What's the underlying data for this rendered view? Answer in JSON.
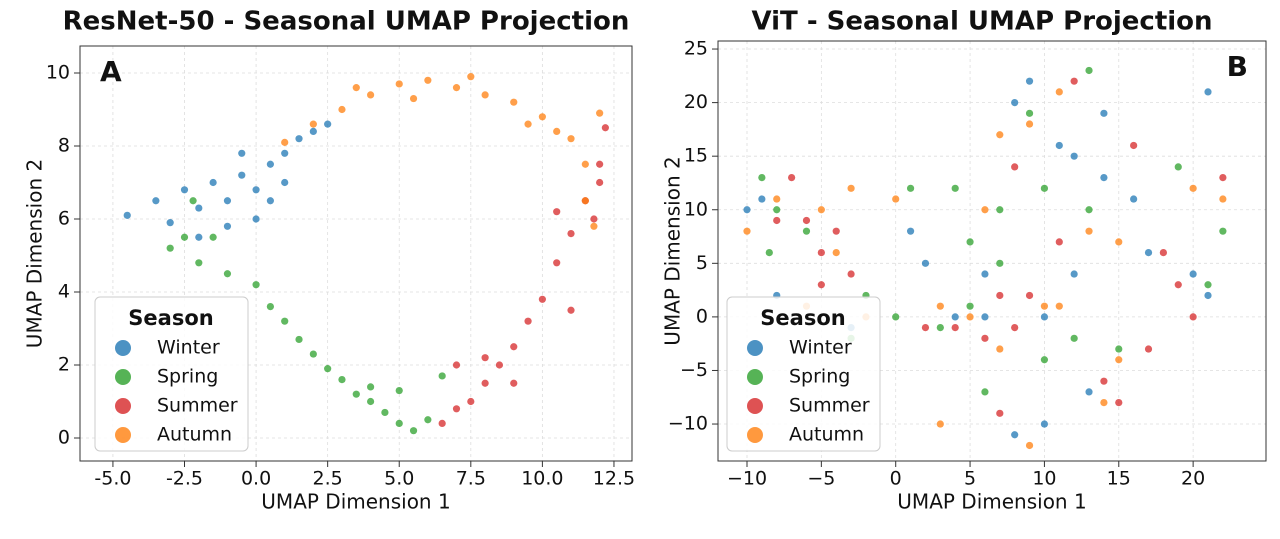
{
  "chart_data": [
    {
      "type": "scatter",
      "title": "ResNet-50 - Seasonal UMAP Projection",
      "panel_label": "A",
      "x_label": "UMAP Dimension 1",
      "y_label": "UMAP Dimension 2",
      "xlim": [
        -6.15,
        13.13
      ],
      "ylim": [
        -0.63,
        10.74
      ],
      "xticks": [
        {
          "value": -5,
          "label": "-5.0"
        },
        {
          "value": -2.5,
          "label": "-2.5"
        },
        {
          "value": 0,
          "label": "0.0"
        },
        {
          "value": 2.5,
          "label": "2.5"
        },
        {
          "value": 5,
          "label": "5.0"
        },
        {
          "value": 7.5,
          "label": "7.5"
        },
        {
          "value": 10,
          "label": "10.0"
        },
        {
          "value": 12.5,
          "label": "12.5"
        }
      ],
      "yticks": [
        0,
        2,
        4,
        6,
        8,
        10
      ],
      "grid": true,
      "legend": "lower left",
      "legend_title": "Season",
      "series": [
        {
          "name": "Winter",
          "color": "#1f77b4",
          "x": [
            -4.5,
            -3.5,
            -2.5,
            -2,
            -1.5,
            -1,
            -0.5,
            0,
            0.5,
            1,
            1.5,
            2,
            -1,
            0,
            -3,
            -2,
            1,
            -0.5,
            2.5,
            0.5
          ],
          "y": [
            6.1,
            6.5,
            6.8,
            6.3,
            7,
            6.5,
            7.2,
            6.8,
            7.5,
            7.8,
            8.2,
            8.4,
            5.8,
            6,
            5.9,
            5.5,
            7,
            7.8,
            8.6,
            6.5
          ]
        },
        {
          "name": "Spring",
          "color": "#2ca02c",
          "x": [
            -3,
            -2,
            -1,
            -2.5,
            0,
            0.5,
            1,
            1.5,
            2,
            2.5,
            3,
            3.5,
            4,
            4.5,
            5,
            5.5,
            6,
            5,
            4,
            6.5,
            -1.5,
            -2.2
          ],
          "y": [
            5.2,
            4.8,
            4.5,
            5.5,
            4.2,
            3.6,
            3.2,
            2.7,
            2.3,
            1.9,
            1.6,
            1.2,
            1,
            0.7,
            0.4,
            0.2,
            0.5,
            1.3,
            1.4,
            1.7,
            5.5,
            6.5
          ]
        },
        {
          "name": "Summer",
          "color": "#d62728",
          "x": [
            6.5,
            7,
            7.5,
            8,
            8.5,
            9,
            9.5,
            10,
            10.5,
            11,
            11.5,
            12,
            12.2,
            11,
            8,
            7,
            10.5,
            11.8,
            12,
            9
          ],
          "y": [
            0.4,
            0.8,
            1,
            1.5,
            2,
            2.5,
            3.2,
            3.8,
            4.8,
            5.6,
            6.5,
            7.5,
            8.5,
            3.5,
            2.2,
            2,
            6.2,
            6,
            7,
            1.5
          ]
        },
        {
          "name": "Autumn",
          "color": "#ff7f0e",
          "x": [
            1,
            2,
            3,
            4,
            5,
            6,
            7,
            8,
            9,
            10,
            10.5,
            11,
            11.5,
            12,
            3.5,
            5.5,
            7.5,
            9.5,
            11.5,
            11.8
          ],
          "y": [
            8.1,
            8.6,
            9,
            9.4,
            9.7,
            9.8,
            9.6,
            9.4,
            9.2,
            8.8,
            8.4,
            8.2,
            7.5,
            8.9,
            9.6,
            9.3,
            9.9,
            8.6,
            6.5,
            5.8
          ]
        }
      ]
    },
    {
      "type": "scatter",
      "title": "ViT - Seasonal UMAP Projection",
      "panel_label": "B",
      "x_label": "UMAP Dimension 1",
      "y_label": "UMAP Dimension 2",
      "xlim": [
        -11.95,
        24.9
      ],
      "ylim": [
        -13.45,
        25.75
      ],
      "xticks": [
        {
          "value": -10,
          "label": "−10"
        },
        {
          "value": -5,
          "label": "−5"
        },
        0,
        5,
        10,
        15,
        20
      ],
      "yticks": [
        {
          "value": -10,
          "label": "−10"
        },
        {
          "value": -5,
          "label": "−5"
        },
        0,
        5,
        10,
        15,
        20,
        25
      ],
      "grid": true,
      "legend": "lower left",
      "legend_title": "Season",
      "series": [
        {
          "name": "Winter",
          "color": "#1f77b4",
          "x": [
            -10,
            -9,
            -8,
            -3,
            1,
            2,
            4,
            6,
            8,
            9,
            11,
            12,
            10,
            14,
            16,
            17,
            20,
            21,
            13,
            8,
            10,
            6,
            12,
            21,
            14
          ],
          "y": [
            10,
            11,
            2,
            -1,
            8,
            5,
            0,
            4,
            20,
            22,
            16,
            15,
            0,
            13,
            11,
            6,
            4,
            2,
            -7,
            -11,
            -10,
            0,
            4,
            21,
            19
          ]
        },
        {
          "name": "Spring",
          "color": "#2ca02c",
          "x": [
            -9,
            -8,
            -3,
            -2,
            1,
            0,
            3,
            5,
            7,
            9,
            13,
            19,
            22,
            21,
            12,
            15,
            10,
            7,
            10,
            13,
            4,
            6,
            -8.5,
            -6,
            5
          ],
          "y": [
            13,
            10,
            -2,
            2,
            12,
            0,
            -1,
            7,
            5,
            19,
            23,
            14,
            8,
            3,
            -2,
            -3,
            -4,
            10,
            12,
            10,
            12,
            -7,
            6,
            8,
            1
          ]
        },
        {
          "name": "Summer",
          "color": "#d62728",
          "x": [
            -7,
            -6,
            -8,
            -5,
            -3,
            -5,
            2,
            4,
            6,
            8,
            7,
            16,
            18,
            19,
            20,
            17,
            14,
            15,
            7,
            12,
            11,
            8,
            22,
            -4,
            9
          ],
          "y": [
            13,
            9,
            9,
            6,
            4,
            3,
            -1,
            -1,
            -2,
            -1,
            2,
            16,
            6,
            3,
            0,
            -3,
            -6,
            -8,
            -9,
            22,
            7,
            14,
            13,
            8,
            2
          ]
        },
        {
          "name": "Autumn",
          "color": "#ff7f0e",
          "x": [
            -10,
            -8,
            -5,
            -4,
            -3,
            -6,
            0,
            -2,
            3,
            5,
            7,
            10,
            11,
            7,
            6,
            9,
            11,
            13,
            15,
            20,
            22,
            15,
            14,
            9,
            3
          ],
          "y": [
            8,
            11,
            10,
            6,
            12,
            1,
            11,
            0,
            1,
            0,
            -3,
            1,
            1,
            17,
            10,
            18,
            21,
            8,
            7,
            12,
            11,
            -4,
            -8,
            -12,
            -10
          ]
        }
      ]
    }
  ]
}
